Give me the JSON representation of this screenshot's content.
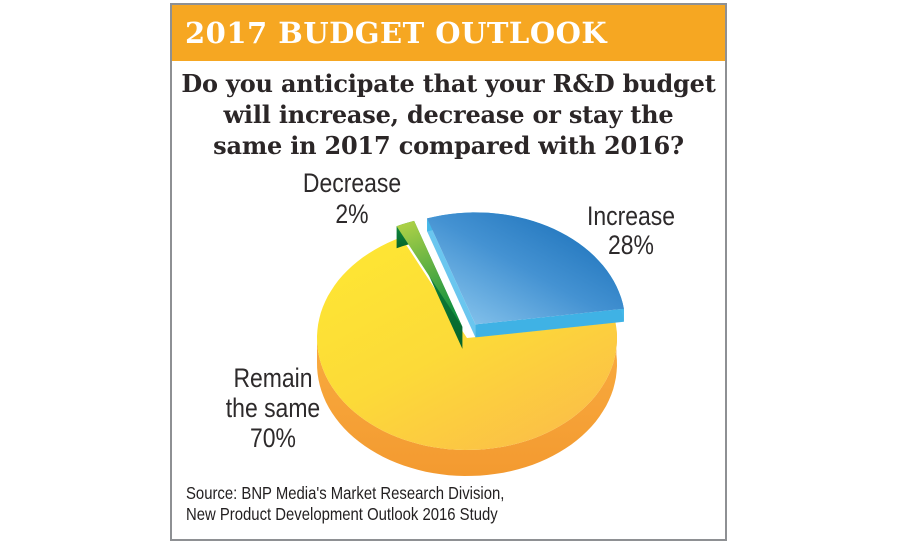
{
  "panel": {
    "header": {
      "title": "2017 BUDGET OUTLOOK",
      "bg_color": "#F6A722"
    },
    "question": {
      "line1": "Do you anticipate that your R&D budget",
      "line2": "will increase, decrease or stay the",
      "line3": "same in 2017 compared with 2016?"
    },
    "source": {
      "line1": "Source: BNP Media's Market Research Division,",
      "line2": "New Product Development Outlook 2016 Study"
    }
  },
  "labels": {
    "decrease": "Decrease 2%",
    "increase_name": "Increase",
    "increase_pct": "28%",
    "remain_line1": "Remain",
    "remain_line2": "the same",
    "remain_pct": "70%"
  },
  "chart_data": {
    "type": "pie",
    "style": "3d-exploded",
    "title": "2017 BUDGET OUTLOOK",
    "question": "Do you anticipate that your R&D budget will increase, decrease or stay the same in 2017 compared with 2016?",
    "slices": [
      {
        "name": "Increase",
        "value": 28,
        "color": "#1470B7",
        "exploded": true
      },
      {
        "name": "Decrease",
        "value": 2,
        "color": "#1D9845",
        "exploded": true
      },
      {
        "name": "Remain the same",
        "value": 70,
        "color": "#FDD331",
        "exploded": false
      }
    ],
    "colors": {
      "header_bg": "#F6A722",
      "increase_top_dark": "#1168B3",
      "increase_top_light": "#93CDF1",
      "increase_rim": "#3FB2E5",
      "decrease_top_light": "#B5D447",
      "decrease_top_dark": "#13913F",
      "decrease_wall": "#057436",
      "remain_top_light": "#FEE733",
      "remain_top_dark": "#FBBC49",
      "remain_wall": "#F7A43B"
    },
    "legend_position": "labels-around-slices",
    "source": "Source: BNP Media's Market Research Division, New Product Development Outlook 2016 Study"
  }
}
